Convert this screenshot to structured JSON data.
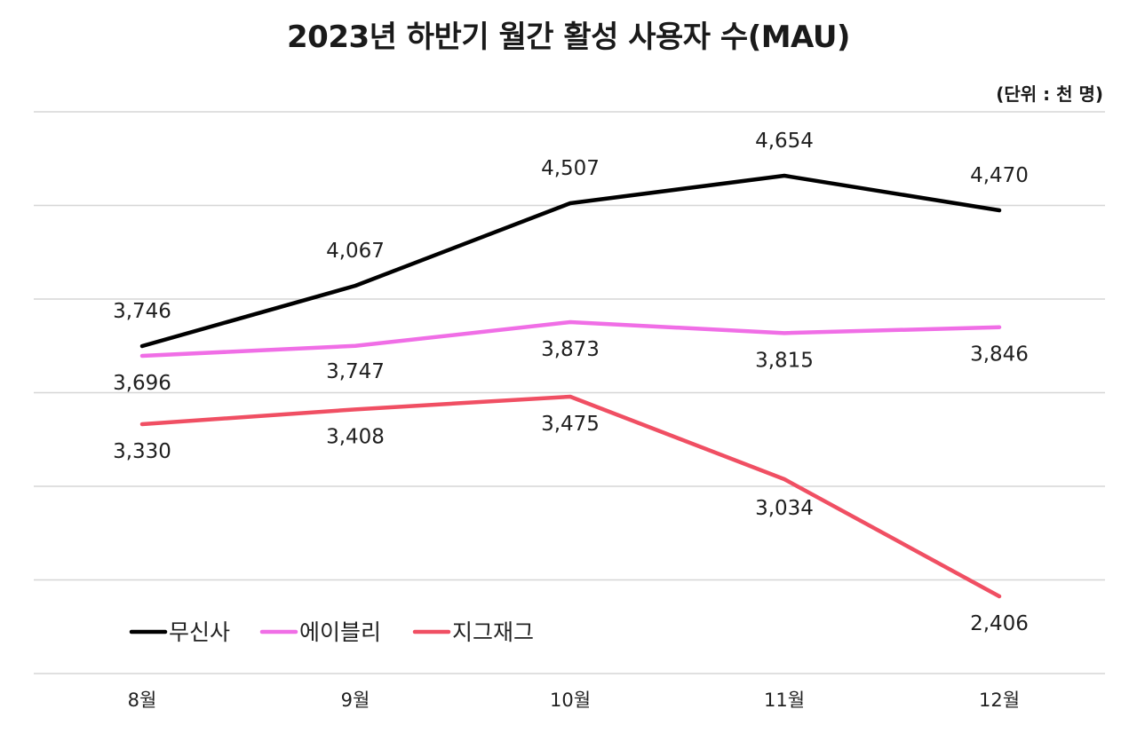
{
  "chart_data": {
    "type": "line",
    "title": "2023년 하반기 월간 활성 사용자 수(MAU)",
    "unit_label": "(단위 : 천 명)",
    "categories": [
      "8월",
      "9월",
      "10월",
      "11월",
      "12월"
    ],
    "series": [
      {
        "name": "무신사",
        "color": "#000000",
        "values": [
          3746,
          4067,
          4507,
          4654,
          4470
        ],
        "labels": [
          "3,746",
          "4,067",
          "4,507",
          "4,654",
          "4,470"
        ]
      },
      {
        "name": "에이블리",
        "color": "#f06ee6",
        "values": [
          3696,
          3747,
          3873,
          3815,
          3846
        ],
        "labels": [
          "3,696",
          "3,747",
          "3,873",
          "3,815",
          "3,846"
        ]
      },
      {
        "name": "지그재그",
        "color": "#f04f63",
        "values": [
          3330,
          3408,
          3475,
          3034,
          2406
        ],
        "labels": [
          "3,330",
          "3,408",
          "3,475",
          "3,034",
          "2,406"
        ]
      }
    ],
    "ylim": [
      2000,
      5000
    ],
    "grid": true,
    "legend_position": "bottom-left",
    "xlabel": "",
    "ylabel": ""
  }
}
